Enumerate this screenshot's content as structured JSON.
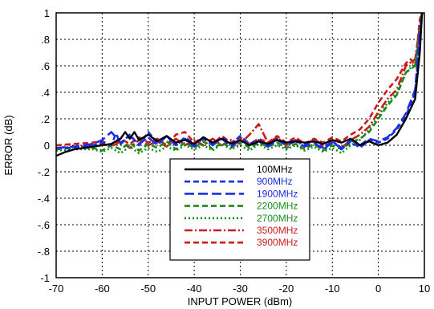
{
  "chart_data": {
    "type": "line",
    "title": "",
    "xlabel": "INPUT POWER (dBm)",
    "ylabel": "ERROR (dB)",
    "xlim": [
      -70,
      10
    ],
    "ylim": [
      -1,
      1
    ],
    "x_ticks": [
      -70,
      -60,
      -50,
      -40,
      -30,
      -20,
      -10,
      0,
      10
    ],
    "y_ticks": [
      -1,
      -0.8,
      -0.6,
      -0.4,
      -0.2,
      0,
      0.2,
      0.4,
      0.6,
      0.8,
      1
    ],
    "grid": true,
    "legend_position": "lower-center",
    "series": [
      {
        "name": "100MHz",
        "color": "#000000",
        "dash": "solid",
        "points": [
          [
            -70,
            -0.08
          ],
          [
            -68,
            -0.05
          ],
          [
            -66,
            -0.03
          ],
          [
            -64,
            -0.02
          ],
          [
            -62,
            -0.01
          ],
          [
            -60,
            0
          ],
          [
            -58,
            0.01
          ],
          [
            -56,
            0.05
          ],
          [
            -55,
            0.1
          ],
          [
            -54,
            0.05
          ],
          [
            -53,
            0.1
          ],
          [
            -52,
            0.04
          ],
          [
            -50,
            0.08
          ],
          [
            -48,
            0.03
          ],
          [
            -46,
            0.07
          ],
          [
            -44,
            0.02
          ],
          [
            -42,
            0.04
          ],
          [
            -40,
            0.01
          ],
          [
            -38,
            0.06
          ],
          [
            -36,
            0.02
          ],
          [
            -34,
            0.05
          ],
          [
            -32,
            0.01
          ],
          [
            -30,
            0.04
          ],
          [
            -28,
            0
          ],
          [
            -26,
            0.03
          ],
          [
            -24,
            0.01
          ],
          [
            -22,
            0.04
          ],
          [
            -20,
            0.02
          ],
          [
            -18,
            0.03
          ],
          [
            -16,
            0.02
          ],
          [
            -14,
            0.03
          ],
          [
            -12,
            0.01
          ],
          [
            -10,
            0.04
          ],
          [
            -8,
            0.02
          ],
          [
            -6,
            0.05
          ],
          [
            -4,
            0
          ],
          [
            -2,
            0.03
          ],
          [
            0,
            0
          ],
          [
            2,
            0.02
          ],
          [
            4,
            0.08
          ],
          [
            6,
            0.2
          ],
          [
            8,
            0.35
          ],
          [
            9,
            0.7
          ],
          [
            9.5,
            1
          ]
        ]
      },
      {
        "name": "900MHz",
        "color": "#1a2ee6",
        "dash": "dash",
        "points": [
          [
            -70,
            -0.02
          ],
          [
            -66,
            -0.02
          ],
          [
            -62,
            0
          ],
          [
            -60,
            0.02
          ],
          [
            -58,
            0
          ],
          [
            -57,
            0.09
          ],
          [
            -56,
            0.01
          ],
          [
            -54,
            0.08
          ],
          [
            -52,
            0
          ],
          [
            -50,
            0.1
          ],
          [
            -48,
            0.02
          ],
          [
            -46,
            0.07
          ],
          [
            -44,
            0
          ],
          [
            -42,
            0.06
          ],
          [
            -40,
            0.01
          ],
          [
            -38,
            0.05
          ],
          [
            -36,
            0
          ],
          [
            -34,
            0.06
          ],
          [
            -32,
            0.01
          ],
          [
            -30,
            0.07
          ],
          [
            -28,
            0.01
          ],
          [
            -26,
            0.04
          ],
          [
            -24,
            0
          ],
          [
            -22,
            0.05
          ],
          [
            -20,
            0.01
          ],
          [
            -18,
            0.04
          ],
          [
            -16,
            0
          ],
          [
            -14,
            0.03
          ],
          [
            -12,
            -0.02
          ],
          [
            -10,
            0.03
          ],
          [
            -8,
            -0.03
          ],
          [
            -6,
            0.03
          ],
          [
            -4,
            -0.02
          ],
          [
            -2,
            0.04
          ],
          [
            0,
            0.02
          ],
          [
            2,
            0.05
          ],
          [
            4,
            0.12
          ],
          [
            6,
            0.22
          ],
          [
            8,
            0.4
          ],
          [
            9,
            0.8
          ],
          [
            9.5,
            1
          ]
        ]
      },
      {
        "name": "1900MHz",
        "color": "#1a2ee6",
        "dash": "longdash",
        "points": [
          [
            -70,
            -0.02
          ],
          [
            -66,
            -0.01
          ],
          [
            -62,
            0.01
          ],
          [
            -60,
            0.04
          ],
          [
            -58,
            0.1
          ],
          [
            -56,
            0.02
          ],
          [
            -54,
            0.07
          ],
          [
            -52,
            0.01
          ],
          [
            -50,
            0.06
          ],
          [
            -48,
            0
          ],
          [
            -46,
            0.07
          ],
          [
            -44,
            0
          ],
          [
            -42,
            0.05
          ],
          [
            -40,
            -0.01
          ],
          [
            -38,
            0.06
          ],
          [
            -36,
            0
          ],
          [
            -34,
            0.05
          ],
          [
            -32,
            -0.01
          ],
          [
            -30,
            0.04
          ],
          [
            -28,
            0
          ],
          [
            -26,
            0.03
          ],
          [
            -24,
            -0.01
          ],
          [
            -22,
            0.04
          ],
          [
            -20,
            0
          ],
          [
            -18,
            0.03
          ],
          [
            -16,
            -0.01
          ],
          [
            -14,
            0.02
          ],
          [
            -12,
            -0.03
          ],
          [
            -10,
            0.02
          ],
          [
            -8,
            -0.02
          ],
          [
            -6,
            0.04
          ],
          [
            -4,
            0
          ],
          [
            -2,
            0.05
          ],
          [
            0,
            0.03
          ],
          [
            2,
            0.06
          ],
          [
            4,
            0.13
          ],
          [
            6,
            0.24
          ],
          [
            8,
            0.42
          ],
          [
            9,
            0.85
          ],
          [
            9.5,
            1
          ]
        ]
      },
      {
        "name": "2200MHz",
        "color": "#1a8a1a",
        "dash": "dash",
        "points": [
          [
            -70,
            -0.03
          ],
          [
            -66,
            -0.02
          ],
          [
            -62,
            -0.02
          ],
          [
            -60,
            -0.04
          ],
          [
            -58,
            0
          ],
          [
            -56,
            -0.03
          ],
          [
            -54,
            0.02
          ],
          [
            -52,
            -0.04
          ],
          [
            -50,
            0.01
          ],
          [
            -48,
            -0.02
          ],
          [
            -46,
            0.03
          ],
          [
            -44,
            -0.03
          ],
          [
            -42,
            0.02
          ],
          [
            -40,
            -0.02
          ],
          [
            -38,
            0.03
          ],
          [
            -36,
            -0.03
          ],
          [
            -34,
            0.02
          ],
          [
            -32,
            -0.02
          ],
          [
            -30,
            0.03
          ],
          [
            -28,
            -0.02
          ],
          [
            -26,
            0.02
          ],
          [
            -24,
            -0.01
          ],
          [
            -22,
            0.02
          ],
          [
            -20,
            -0.02
          ],
          [
            -18,
            0.01
          ],
          [
            -16,
            -0.03
          ],
          [
            -14,
            0.01
          ],
          [
            -12,
            -0.04
          ],
          [
            -10,
            0
          ],
          [
            -8,
            -0.03
          ],
          [
            -6,
            0.02
          ],
          [
            -4,
            0.05
          ],
          [
            -2,
            0.1
          ],
          [
            0,
            0.2
          ],
          [
            2,
            0.3
          ],
          [
            4,
            0.38
          ],
          [
            6,
            0.55
          ],
          [
            8,
            0.6
          ],
          [
            9,
            0.85
          ],
          [
            9.5,
            1
          ]
        ]
      },
      {
        "name": "2700MHz",
        "color": "#1a8a1a",
        "dash": "dot",
        "points": [
          [
            -70,
            -0.04
          ],
          [
            -66,
            -0.03
          ],
          [
            -62,
            -0.03
          ],
          [
            -60,
            -0.05
          ],
          [
            -58,
            -0.02
          ],
          [
            -56,
            -0.06
          ],
          [
            -54,
            -0.01
          ],
          [
            -52,
            -0.06
          ],
          [
            -50,
            -0.02
          ],
          [
            -48,
            -0.05
          ],
          [
            -46,
            -0.01
          ],
          [
            -44,
            -0.04
          ],
          [
            -42,
            0
          ],
          [
            -40,
            -0.03
          ],
          [
            -38,
            0
          ],
          [
            -36,
            -0.04
          ],
          [
            -34,
            0.01
          ],
          [
            -32,
            -0.03
          ],
          [
            -30,
            0
          ],
          [
            -28,
            -0.04
          ],
          [
            -26,
            0.01
          ],
          [
            -24,
            -0.03
          ],
          [
            -22,
            0
          ],
          [
            -20,
            -0.03
          ],
          [
            -18,
            0
          ],
          [
            -16,
            -0.04
          ],
          [
            -14,
            -0.01
          ],
          [
            -12,
            -0.05
          ],
          [
            -10,
            -0.02
          ],
          [
            -8,
            -0.06
          ],
          [
            -6,
            0
          ],
          [
            -4,
            0.04
          ],
          [
            -2,
            0.12
          ],
          [
            0,
            0.22
          ],
          [
            2,
            0.32
          ],
          [
            4,
            0.4
          ],
          [
            6,
            0.55
          ],
          [
            8,
            0.62
          ],
          [
            9,
            0.88
          ],
          [
            9.5,
            1
          ]
        ]
      },
      {
        "name": "3500MHz",
        "color": "#cc1a1a",
        "dash": "dashdot",
        "points": [
          [
            -70,
            -0.02
          ],
          [
            -66,
            -0.01
          ],
          [
            -62,
            0
          ],
          [
            -60,
            0.01
          ],
          [
            -58,
            -0.01
          ],
          [
            -56,
            0.03
          ],
          [
            -54,
            -0.02
          ],
          [
            -52,
            0.04
          ],
          [
            -50,
            0
          ],
          [
            -48,
            0.03
          ],
          [
            -46,
            -0.01
          ],
          [
            -44,
            0.05
          ],
          [
            -42,
            0
          ],
          [
            -40,
            0.04
          ],
          [
            -38,
            0
          ],
          [
            -36,
            0.05
          ],
          [
            -34,
            0
          ],
          [
            -32,
            0.04
          ],
          [
            -30,
            0.01
          ],
          [
            -28,
            0.08
          ],
          [
            -26,
            0.16
          ],
          [
            -24,
            0.02
          ],
          [
            -22,
            0.06
          ],
          [
            -20,
            0
          ],
          [
            -18,
            0.04
          ],
          [
            -16,
            -0.01
          ],
          [
            -14,
            0.05
          ],
          [
            -12,
            0
          ],
          [
            -10,
            0.03
          ],
          [
            -8,
            -0.02
          ],
          [
            -6,
            0.04
          ],
          [
            -4,
            0.08
          ],
          [
            -2,
            0.14
          ],
          [
            0,
            0.25
          ],
          [
            2,
            0.35
          ],
          [
            4,
            0.42
          ],
          [
            6,
            0.6
          ],
          [
            8,
            0.65
          ],
          [
            9,
            0.9
          ],
          [
            9.5,
            1
          ]
        ]
      },
      {
        "name": "3900MHz",
        "color": "#cc1a1a",
        "dash": "dash",
        "points": [
          [
            -70,
            0
          ],
          [
            -66,
            0.01
          ],
          [
            -62,
            0.02
          ],
          [
            -60,
            0.03
          ],
          [
            -58,
            0
          ],
          [
            -56,
            0.05
          ],
          [
            -54,
            0.01
          ],
          [
            -52,
            0.06
          ],
          [
            -50,
            0.02
          ],
          [
            -48,
            0.05
          ],
          [
            -46,
            0
          ],
          [
            -44,
            0.08
          ],
          [
            -42,
            0.1
          ],
          [
            -40,
            0.02
          ],
          [
            -38,
            0.06
          ],
          [
            -36,
            0.01
          ],
          [
            -34,
            0.07
          ],
          [
            -32,
            0.02
          ],
          [
            -30,
            0.06
          ],
          [
            -28,
            0.01
          ],
          [
            -26,
            0.05
          ],
          [
            -24,
            0.02
          ],
          [
            -22,
            0.07
          ],
          [
            -20,
            0.02
          ],
          [
            -18,
            0.06
          ],
          [
            -16,
            0.01
          ],
          [
            -14,
            0.05
          ],
          [
            -12,
            0.02
          ],
          [
            -10,
            0.06
          ],
          [
            -8,
            0.03
          ],
          [
            -6,
            0.08
          ],
          [
            -4,
            0.12
          ],
          [
            -2,
            0.2
          ],
          [
            0,
            0.32
          ],
          [
            2,
            0.42
          ],
          [
            4,
            0.5
          ],
          [
            6,
            0.62
          ],
          [
            7,
            0.65
          ],
          [
            8,
            0.6
          ],
          [
            9,
            0.95
          ],
          [
            9.5,
            1
          ]
        ]
      }
    ]
  }
}
